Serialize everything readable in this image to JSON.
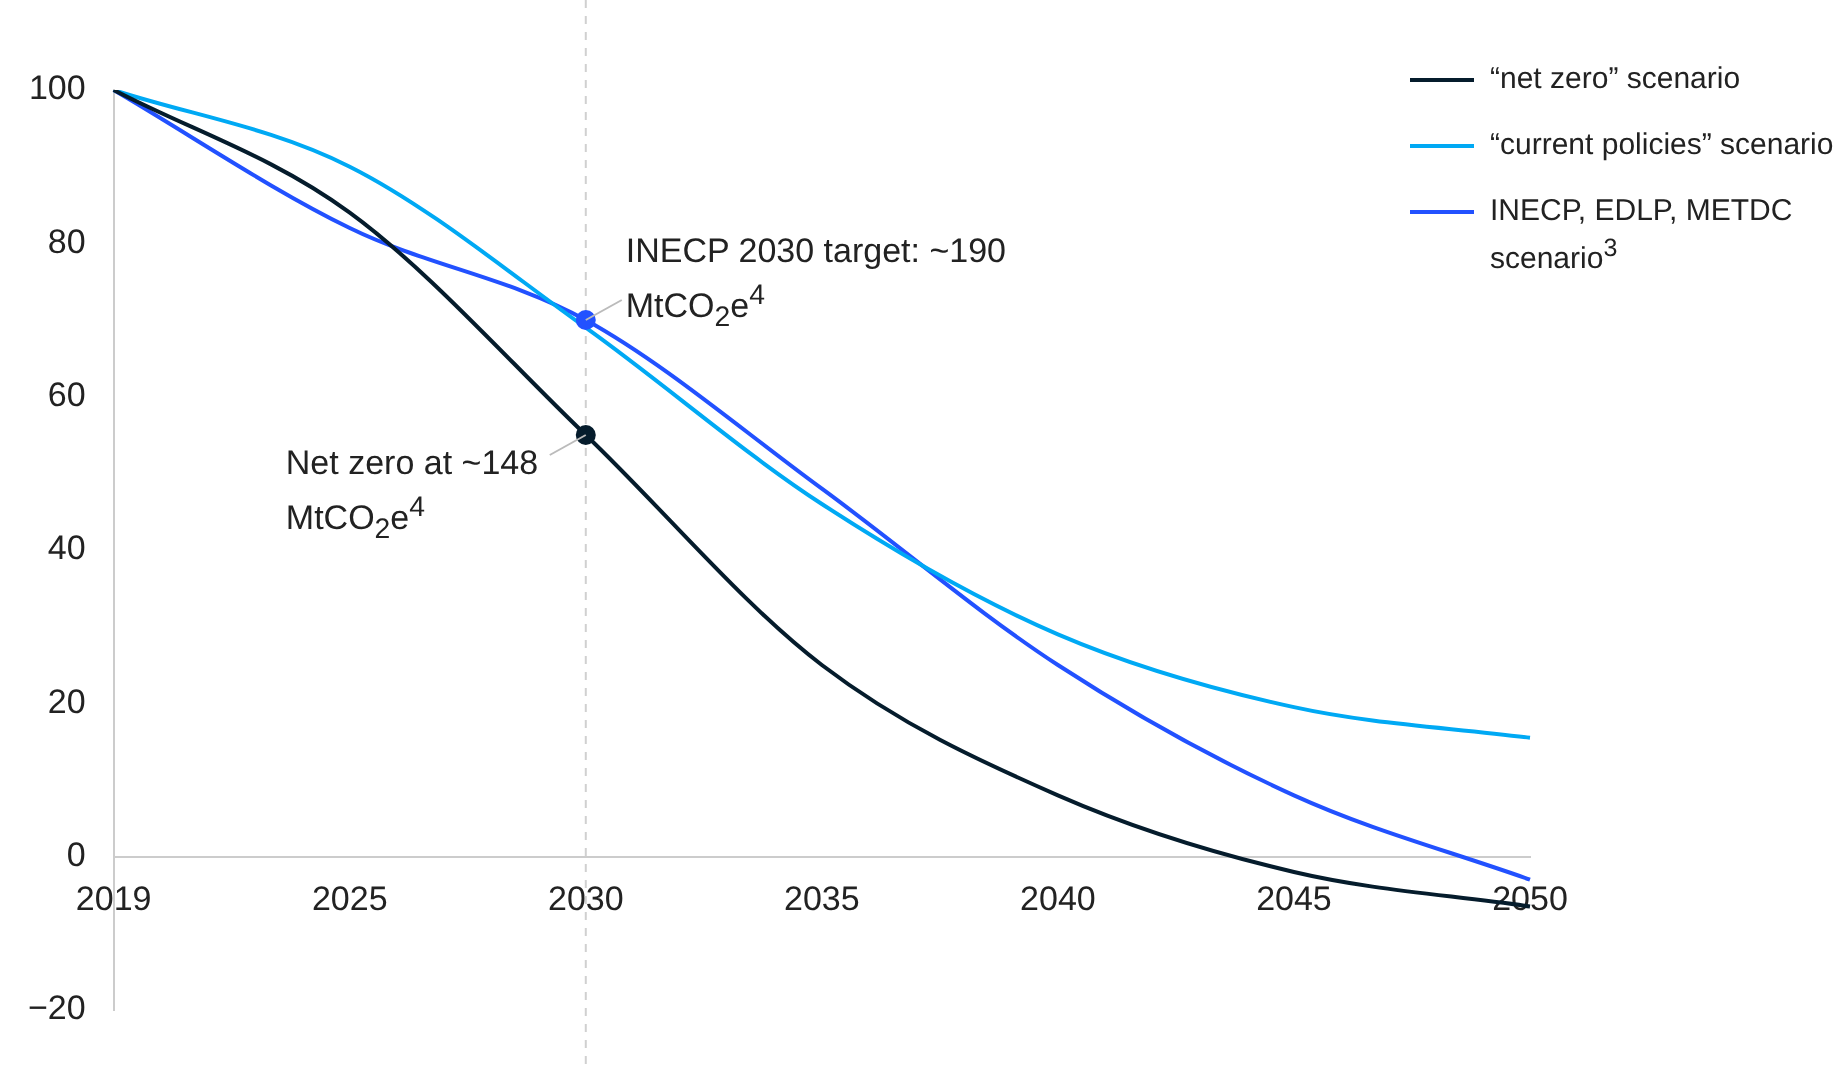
{
  "chart_data": {
    "type": "line",
    "categories": [
      "2019",
      "2025",
      "2030",
      "2035",
      "2040",
      "2045",
      "2050"
    ],
    "series": [
      {
        "name": "“net zero” scenario",
        "color": "#051c2c",
        "values": [
          100,
          84,
          55,
          25,
          8,
          -2,
          -6.5
        ]
      },
      {
        "name": "“current policies” scenario",
        "color": "#00a9f4",
        "values": [
          100,
          90,
          69,
          46,
          29,
          19.5,
          15.5
        ]
      },
      {
        "name": "INECP, EDLP, METDC scenario$^{3}$",
        "color": "#2251ff",
        "values": [
          100,
          82,
          70,
          48,
          25,
          8,
          -3
        ]
      }
    ],
    "ylim": [
      -20,
      100
    ],
    "yticks": [
      {
        "value": -20,
        "label": "−20"
      },
      0,
      20,
      40,
      60,
      80,
      100
    ],
    "grid": false,
    "legend": "top right",
    "marker": "none",
    "line_style": "solid",
    "ref_lines": [
      {
        "axis": "x",
        "value": "2030",
        "label": null,
        "color": "#d0d0d0",
        "line_style": "dashed"
      }
    ],
    "annotations": [
      {
        "text": "INECP 2030 target: ~190 MtCO$_{2}$e$^{4}$",
        "x": "2030",
        "y": 70
      },
      {
        "text": "Net zero at ~148 MtCO$_{2}$e$^{4}$",
        "x": "2030",
        "y": 55
      }
    ]
  }
}
